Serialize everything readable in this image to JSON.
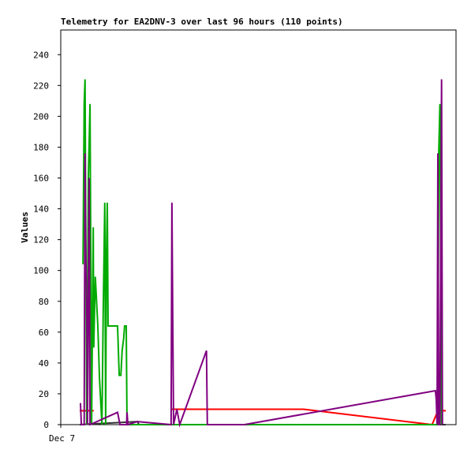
{
  "chart_data": {
    "type": "line",
    "title": "Telemetry for EA2DNV-3 over last 96 hours (110 points)",
    "y_label": "Values",
    "xlim": [
      0,
      96
    ],
    "xticks": [
      {
        "value": 0,
        "label": "Dec 7"
      }
    ],
    "ylim": [
      0,
      256
    ],
    "yticks": [
      0,
      20,
      40,
      60,
      80,
      100,
      120,
      140,
      160,
      180,
      200,
      220,
      240
    ],
    "series": [
      {
        "color": "#ff0000",
        "x": [
          4.6,
          8.0,
          null,
          27.0,
          59.0,
          90.2,
          91.6,
          93.5
        ],
        "values": [
          9,
          9,
          null,
          10,
          10,
          0,
          9,
          9
        ]
      },
      {
        "color": "#333333",
        "x": [
          4.6,
          18.6,
          19.0,
          93.5
        ],
        "values": [
          0,
          2,
          0,
          0
        ]
      },
      {
        "color": "#00aa00",
        "x": [
          5.4,
          5.7,
          5.9,
          6.3,
          6.7,
          7.1,
          7.5,
          7.9,
          8.0,
          8.4,
          9.0,
          9.4,
          10.0,
          10.3,
          10.7,
          10.9,
          11.1,
          11.3,
          11.5,
          13.8,
          14.2,
          14.6,
          14.9,
          15.3,
          15.5,
          15.9,
          16.1,
          91.6,
          91.8,
          92.1,
          92.3,
          92.5
        ],
        "values": [
          104,
          208,
          224,
          0,
          160,
          208,
          0,
          128,
          50,
          96,
          64,
          30,
          0,
          72,
          144,
          0,
          108,
          144,
          64,
          64,
          32,
          32,
          48,
          56,
          64,
          64,
          0,
          0,
          176,
          208,
          104,
          0
        ]
      },
      {
        "color": "#800080",
        "x": [
          4.8,
          5.0,
          5.7,
          5.9,
          6.1,
          6.3,
          6.5,
          6.9,
          7.1,
          13.8,
          14.4,
          16.0,
          16.1,
          16.3,
          18.6,
          26.8,
          27.0,
          27.2,
          27.4,
          28.2,
          28.9,
          35.4,
          35.6,
          44.6,
          91.0,
          91.2,
          91.4,
          91.6,
          91.8,
          92.1,
          92.5,
          92.7
        ],
        "values": [
          14,
          0,
          0,
          176,
          112,
          80,
          0,
          160,
          0,
          8,
          0,
          0,
          8,
          0,
          2,
          0,
          144,
          72,
          0,
          10,
          0,
          48,
          0,
          0,
          22,
          16,
          0,
          176,
          0,
          0,
          224,
          0
        ]
      }
    ]
  }
}
